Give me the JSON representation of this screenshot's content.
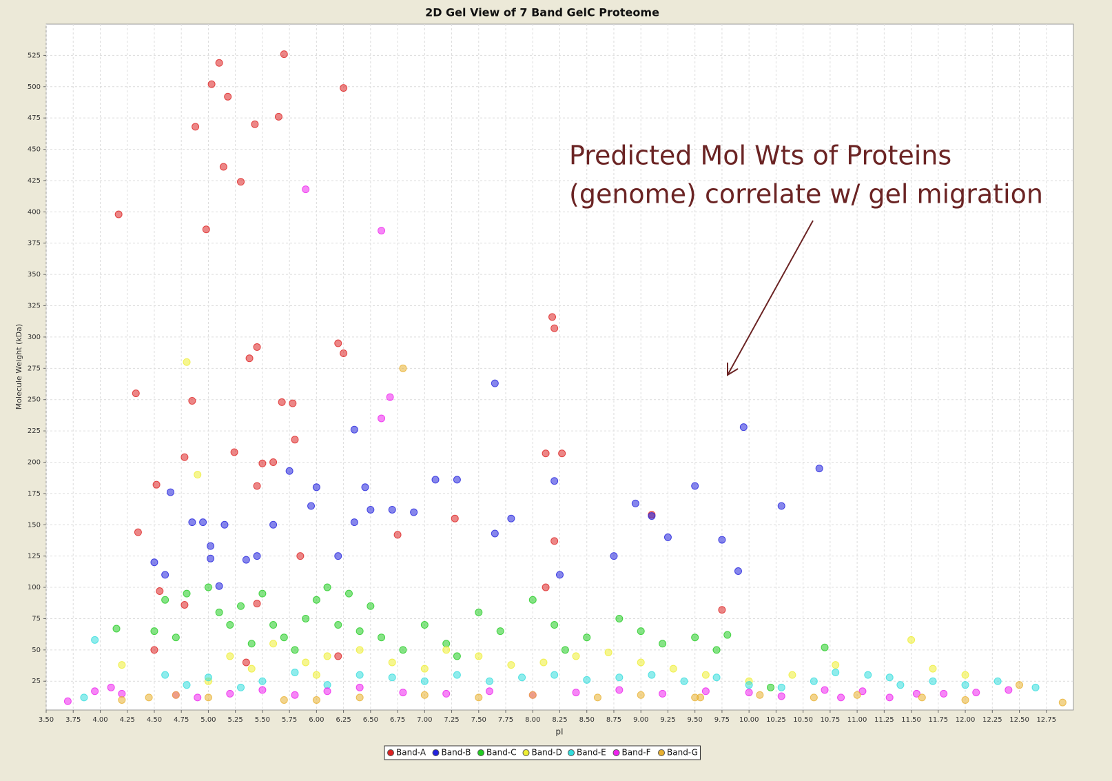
{
  "chart_data": {
    "type": "scatter",
    "title": "2D Gel View of 7 Band GelC Proteome",
    "x_label": "pI",
    "y_label": "Molecule Weight (kDa)",
    "annotation": [
      "Predicted Mol Wts of Proteins",
      "(genome) correlate w/ gel migration"
    ],
    "xlim": [
      3.5,
      13.0
    ],
    "ylim": [
      2,
      550
    ],
    "xticks": [
      {
        "value": 3.5,
        "label": "3.50"
      },
      3.75,
      {
        "value": 4,
        "label": "4.00"
      },
      4.25,
      {
        "value": 4.5,
        "label": "4.50"
      },
      4.75,
      {
        "value": 5,
        "label": "5.00"
      },
      5.25,
      {
        "value": 5.5,
        "label": "5.50"
      },
      5.75,
      {
        "value": 6,
        "label": "6.00"
      },
      6.25,
      {
        "value": 6.5,
        "label": "6.50"
      },
      6.75,
      {
        "value": 7,
        "label": "7.00"
      },
      7.25,
      {
        "value": 7.5,
        "label": "7.50"
      },
      7.75,
      {
        "value": 8,
        "label": "8.00"
      },
      8.25,
      {
        "value": 8.5,
        "label": "8.50"
      },
      8.75,
      {
        "value": 9,
        "label": "9.00"
      },
      9.25,
      {
        "value": 9.5,
        "label": "9.50"
      },
      9.75,
      {
        "value": 10,
        "label": "10.00"
      },
      10.25,
      {
        "value": 10.5,
        "label": "10.50"
      },
      10.75,
      {
        "value": 11,
        "label": "11.00"
      },
      11.25,
      {
        "value": 11.5,
        "label": "11.50"
      },
      11.75,
      {
        "value": 12,
        "label": "12.00"
      },
      12.25,
      {
        "value": 12.5,
        "label": "12.50"
      },
      12.75
    ],
    "yticks": [
      25,
      50,
      75,
      100,
      125,
      150,
      175,
      200,
      225,
      250,
      275,
      300,
      325,
      350,
      375,
      400,
      425,
      450,
      475,
      500,
      525
    ],
    "grid": true,
    "legend": "bottom",
    "series": [
      {
        "name": "Band-A",
        "color": "#dd2222",
        "x": [
          5.7,
          5.1,
          5.03,
          6.25,
          5.18,
          5.43,
          4.88,
          5.65,
          5.14,
          5.3,
          4.17,
          4.98,
          5.45,
          5.38,
          6.2,
          6.25,
          8.2,
          8.18,
          4.33,
          4.85,
          5.68,
          5.78,
          5.8,
          5.24,
          5.6,
          5.5,
          4.78,
          8.12,
          8.27,
          4.52,
          5.45,
          4.35,
          5.85,
          4.55,
          4.78,
          5.45,
          8.12,
          7.28,
          6.75,
          9.1,
          4.5,
          8.2,
          6.2,
          5.35,
          9.75
        ],
        "values": [
          526,
          519,
          502,
          499,
          492,
          470,
          468,
          476,
          436,
          424,
          398,
          386,
          292,
          283,
          295,
          287,
          307,
          316,
          255,
          249,
          248,
          247,
          218,
          208,
          200,
          199,
          204,
          207,
          207,
          182,
          181,
          144,
          125,
          97,
          86,
          87,
          100,
          155,
          142,
          158,
          50,
          137,
          45,
          40,
          82
        ]
      },
      {
        "name": "Band-B",
        "color": "#2222dd",
        "x": [
          5.75,
          6.35,
          9.95,
          7.65,
          10.65,
          5.02,
          5.02,
          4.95,
          4.85,
          5.15,
          5.45,
          5.6,
          5.95,
          6.2,
          6.5,
          6.7,
          6.9,
          7.1,
          7.3,
          7.65,
          7.8,
          8.2,
          9.5,
          9.75,
          9.25,
          8.75,
          9.9,
          10.3,
          4.5,
          4.6,
          5.1,
          5.35,
          6.35,
          4.65,
          6.45,
          9.1,
          8.95,
          8.25,
          6.0
        ],
        "values": [
          193,
          226,
          228,
          263,
          195,
          123,
          133,
          152,
          152,
          150,
          125,
          150,
          165,
          125,
          162,
          162,
          160,
          186,
          186,
          143,
          155,
          185,
          181,
          138,
          140,
          125,
          113,
          165,
          120,
          110,
          101,
          122,
          152,
          176,
          180,
          157,
          167,
          110,
          180
        ]
      },
      {
        "name": "Band-C",
        "color": "#22cc22",
        "x": [
          4.6,
          4.8,
          5.0,
          5.1,
          5.2,
          5.3,
          5.5,
          5.6,
          5.7,
          5.9,
          6.0,
          6.1,
          6.2,
          6.3,
          6.5,
          4.5,
          4.7,
          5.4,
          5.8,
          6.4,
          6.6,
          7.0,
          7.2,
          7.5,
          7.7,
          8.0,
          8.2,
          8.5,
          8.8,
          9.0,
          9.2,
          9.5,
          9.7,
          9.8,
          4.15,
          10.2,
          10.7,
          7.3,
          8.3,
          6.8
        ],
        "values": [
          90,
          95,
          100,
          80,
          70,
          85,
          95,
          70,
          60,
          75,
          90,
          100,
          70,
          95,
          85,
          65,
          60,
          55,
          50,
          65,
          60,
          70,
          55,
          80,
          65,
          90,
          70,
          60,
          75,
          65,
          55,
          60,
          50,
          62,
          67,
          20,
          52,
          45,
          50,
          50
        ]
      },
      {
        "name": "Band-D",
        "color": "#eeee33",
        "x": [
          5.2,
          5.4,
          5.6,
          5.9,
          6.1,
          6.4,
          6.7,
          7.0,
          7.2,
          7.5,
          7.8,
          8.1,
          8.4,
          8.7,
          9.0,
          9.3,
          9.6,
          10.0,
          10.4,
          10.8,
          11.5,
          11.7,
          4.8,
          4.9,
          12.0,
          6.0,
          5.0,
          4.2
        ],
        "values": [
          45,
          35,
          55,
          40,
          45,
          50,
          40,
          35,
          50,
          45,
          38,
          40,
          45,
          48,
          40,
          35,
          30,
          25,
          30,
          38,
          58,
          35,
          280,
          190,
          30,
          30,
          25,
          38
        ]
      },
      {
        "name": "Band-E",
        "color": "#33dddd",
        "x": [
          3.85,
          4.6,
          4.8,
          5.0,
          5.3,
          5.5,
          5.8,
          6.1,
          6.4,
          6.7,
          7.0,
          7.3,
          7.6,
          7.9,
          8.2,
          8.5,
          8.8,
          9.1,
          9.4,
          9.7,
          10.0,
          10.3,
          10.6,
          10.8,
          11.1,
          11.4,
          11.7,
          12.0,
          12.3,
          12.65,
          3.95,
          11.3
        ],
        "values": [
          12,
          30,
          22,
          28,
          20,
          25,
          32,
          22,
          30,
          28,
          25,
          30,
          25,
          28,
          30,
          26,
          28,
          30,
          25,
          28,
          22,
          20,
          25,
          32,
          30,
          22,
          25,
          22,
          25,
          20,
          58,
          28
        ]
      },
      {
        "name": "Band-F",
        "color": "#ee22ee",
        "x": [
          3.7,
          3.95,
          4.1,
          4.2,
          4.7,
          4.9,
          5.2,
          5.5,
          5.8,
          6.1,
          6.4,
          6.8,
          7.2,
          7.6,
          8.0,
          8.4,
          8.8,
          9.2,
          9.6,
          10.0,
          10.3,
          10.7,
          10.85,
          11.05,
          11.3,
          11.55,
          11.8,
          12.1,
          12.4,
          5.9,
          6.6,
          6.68,
          6.6
        ],
        "values": [
          9,
          17,
          20,
          15,
          14,
          12,
          15,
          18,
          14,
          17,
          20,
          16,
          15,
          17,
          14,
          16,
          18,
          15,
          17,
          16,
          13,
          18,
          12,
          17,
          12,
          15,
          15,
          16,
          18,
          418,
          385,
          252,
          235
        ]
      },
      {
        "name": "Band-G",
        "color": "#e8b030",
        "x": [
          4.2,
          4.45,
          4.7,
          5.0,
          5.7,
          6.0,
          6.4,
          7.0,
          7.5,
          8.0,
          8.6,
          9.0,
          9.5,
          10.1,
          10.6,
          11.0,
          11.6,
          12.0,
          12.5,
          12.9,
          6.8,
          9.55
        ],
        "values": [
          10,
          12,
          14,
          12,
          10,
          10,
          12,
          14,
          12,
          14,
          12,
          14,
          12,
          14,
          12,
          14,
          12,
          10,
          22,
          8,
          275,
          12
        ]
      }
    ]
  }
}
